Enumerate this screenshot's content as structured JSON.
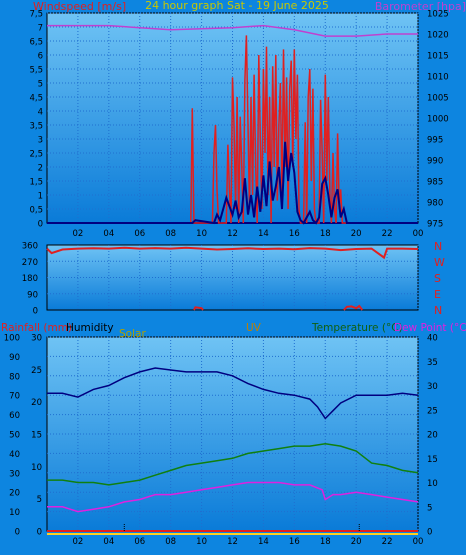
{
  "title": "24 hour graph Sat - 19 June 2025",
  "colors": {
    "background": "#0d85e0",
    "plot_top": "#6fc3f4",
    "plot_bottom": "#0a7bd8",
    "grid": "#1f6fd0",
    "wind": "#e02020",
    "gust": "#000080",
    "barometer": "#c040d0",
    "direction": "#e02020",
    "humidity": "#000080",
    "temperature": "#108010",
    "dewpoint": "#e020e0",
    "rain": "#e02020",
    "solar": "#ffd020",
    "uv": "#000000",
    "axis_text": "#000000",
    "title_text": "#c8c800",
    "rain_label": "#e02020",
    "humidity_label": "#000000",
    "solar_label": "#b0a000",
    "uv_label": "#c08000",
    "temp_label": "#106010",
    "dew_label": "#e020e0",
    "baro_label": "#c040d0"
  },
  "chart_data": [
    {
      "type": "line",
      "name": "wind",
      "xlabel_ticks": [
        "02",
        "04",
        "06",
        "08",
        "10",
        "12",
        "14",
        "16",
        "18",
        "20",
        "22",
        "00"
      ],
      "left_label": "Windspeed [m/s]",
      "left_ticks": [
        "0",
        "0,5",
        "1",
        "1,5",
        "2",
        "2,5",
        "3",
        "3,5",
        "4",
        "4,5",
        "5",
        "5,5",
        "6",
        "6,5",
        "7",
        "7,5"
      ],
      "left_range": [
        0,
        7.5
      ],
      "right_label": "Barometer [hpa]",
      "right_ticks": [
        "975",
        "980",
        "985",
        "990",
        "995",
        "1000",
        "1005",
        "1010",
        "1015",
        "1020",
        "1025"
      ],
      "right_range": [
        975,
        1025
      ],
      "barometer": {
        "x": [
          0,
          4,
          6,
          8,
          12,
          14,
          16,
          18,
          20,
          22,
          24
        ],
        "y": [
          1022,
          1022,
          1021.5,
          1021,
          1021.5,
          1022,
          1021,
          1019.5,
          1019.5,
          1020,
          1020
        ]
      },
      "wind_speed": {
        "x": [
          0,
          9.3,
          9.4,
          9.5,
          10.7,
          10.8,
          10.9,
          11,
          11.1,
          11.6,
          11.7,
          11.8,
          11.9,
          12,
          12.1,
          12.2,
          12.3,
          12.4,
          12.5,
          12.6,
          12.7,
          12.8,
          12.9,
          13,
          13.1,
          13.2,
          13.3,
          13.4,
          13.5,
          13.6,
          13.7,
          13.8,
          13.9,
          14,
          14.1,
          14.2,
          14.3,
          14.4,
          14.5,
          14.6,
          14.7,
          14.8,
          14.9,
          15,
          15.1,
          15.2,
          15.3,
          15.4,
          15.5,
          15.6,
          15.7,
          15.8,
          15.9,
          16,
          16.1,
          16.2,
          16.3,
          16.4,
          16.5,
          16.6,
          16.7,
          16.8,
          16.9,
          17,
          17.1,
          17.2,
          17.3,
          17.4,
          17.5,
          17.6,
          17.7,
          17.8,
          17.9,
          18,
          18.1,
          18.2,
          18.3,
          18.4,
          18.5,
          18.6,
          18.7,
          18.8,
          18.9,
          19,
          19.1,
          19.2,
          19.3,
          24
        ],
        "y": [
          0,
          0,
          4.1,
          0,
          0,
          2.5,
          3.5,
          1.2,
          0,
          0,
          2.8,
          1.2,
          0,
          5.2,
          3.5,
          0.5,
          4.5,
          0,
          3.8,
          2,
          0,
          5.1,
          6.7,
          3.5,
          0.5,
          4.5,
          1,
          5.3,
          2,
          0,
          6,
          3,
          0.5,
          5.5,
          2.5,
          6.3,
          1,
          4.5,
          0,
          5.6,
          2,
          6,
          0.8,
          3.5,
          5,
          1,
          6.2,
          2,
          5.2,
          0.5,
          4.8,
          5.8,
          2,
          6.2,
          3,
          5.3,
          0.5,
          0,
          0,
          0,
          3.6,
          0,
          4.5,
          5.5,
          1.5,
          4.8,
          0.5,
          0,
          0,
          0,
          4.4,
          2.5,
          0,
          5.3,
          1.5,
          4.5,
          1,
          0,
          2.5,
          0.5,
          0,
          3.2,
          0.5,
          1.2,
          0,
          0,
          0,
          0
        ]
      },
      "wind_gust": {
        "x": [
          0,
          9.4,
          9.6,
          10.8,
          11,
          11.2,
          11.4,
          11.6,
          11.8,
          12,
          12.2,
          12.4,
          12.6,
          12.8,
          13,
          13.2,
          13.4,
          13.6,
          13.8,
          14,
          14.2,
          14.4,
          14.6,
          14.8,
          15,
          15.2,
          15.4,
          15.6,
          15.8,
          16,
          16.2,
          16.4,
          16.6,
          16.8,
          17,
          17.2,
          17.4,
          17.6,
          17.8,
          18,
          18.2,
          18.4,
          18.6,
          18.8,
          19,
          19.2,
          19.4,
          24
        ],
        "y": [
          0,
          0,
          0.1,
          0,
          0.3,
          0.1,
          0.5,
          0.9,
          0.6,
          0.3,
          0.8,
          0.2,
          0.4,
          1.6,
          0.3,
          1,
          0.2,
          1.3,
          0.4,
          1.7,
          0.6,
          2.2,
          0.8,
          1.3,
          2,
          0.5,
          2.9,
          1.5,
          2.5,
          1.8,
          0.4,
          0.1,
          0,
          0.2,
          0.4,
          0.1,
          0,
          0.2,
          1.4,
          1.6,
          1,
          0.2,
          0.9,
          1.2,
          0.2,
          0.5,
          0,
          0
        ]
      }
    },
    {
      "type": "line",
      "name": "direction",
      "left_ticks": [
        "0",
        "90",
        "180",
        "270",
        "360"
      ],
      "left_range": [
        0,
        360
      ],
      "compass": [
        "N",
        "W",
        "S",
        "E",
        "N"
      ],
      "direction": {
        "x": [
          0,
          0.3,
          1,
          2,
          3,
          4,
          5,
          6,
          7,
          8,
          9,
          10,
          11,
          12,
          13,
          14,
          15,
          16,
          17,
          18,
          19,
          20,
          21,
          21.8,
          22,
          23,
          24
        ],
        "y": [
          340,
          315,
          335,
          340,
          342,
          340,
          345,
          340,
          343,
          340,
          345,
          340,
          335,
          338,
          342,
          338,
          340,
          337,
          343,
          340,
          332,
          338,
          340,
          290,
          340,
          340,
          338
        ]
      },
      "low_marks": [
        {
          "x": [
            9.5,
            9.6,
            10,
            10.1
          ],
          "y": [
            0,
            15,
            10,
            0
          ]
        },
        {
          "x": [
            19.2,
            19.4,
            19.7,
            20,
            20.2,
            20.4
          ],
          "y": [
            0,
            18,
            20,
            10,
            22,
            0
          ]
        }
      ]
    },
    {
      "type": "line",
      "name": "climate",
      "legend": [
        "Rainfall (mm)",
        "Humidity",
        "Solar",
        "UV",
        "Temperature (°C)",
        "Dew Point (°C)"
      ],
      "humidity_ticks": [
        "0",
        "10",
        "20",
        "30",
        "40",
        "50",
        "60",
        "70",
        "80",
        "90",
        "100"
      ],
      "humidity_range": [
        0,
        100
      ],
      "rain_ticks": [
        "0",
        "5",
        "10",
        "15",
        "20",
        "25",
        "30"
      ],
      "rain_range": [
        0,
        30
      ],
      "temp_ticks": [
        "0",
        "5",
        "10",
        "15",
        "20",
        "25",
        "30",
        "35",
        "40"
      ],
      "temp_range": [
        0,
        40
      ],
      "humidity": {
        "x": [
          0,
          1,
          2,
          3,
          4,
          5,
          6,
          7,
          8,
          9,
          10,
          11,
          12,
          13,
          14,
          15,
          16,
          17,
          17.5,
          18,
          18.5,
          19,
          20,
          21,
          22,
          23,
          24
        ],
        "y": [
          71,
          71,
          69,
          73,
          75,
          79,
          82,
          84,
          83,
          82,
          82,
          82,
          80,
          76,
          73,
          71,
          70,
          68,
          64,
          58,
          62,
          66,
          70,
          70,
          70,
          71,
          70
        ]
      },
      "temperature": {
        "x": [
          0,
          1,
          2,
          3,
          4,
          5,
          6,
          7,
          8,
          9,
          10,
          11,
          12,
          13,
          14,
          15,
          16,
          17,
          18,
          19,
          20,
          21,
          22,
          23,
          24
        ],
        "y": [
          10.5,
          10.5,
          10,
          10,
          9.5,
          10,
          10.5,
          11.5,
          12.5,
          13.5,
          14,
          14.5,
          15,
          16,
          16.5,
          17,
          17.5,
          17.5,
          18,
          17.5,
          16.5,
          14,
          13.5,
          12.5,
          12
        ]
      },
      "dewpoint": {
        "x": [
          0,
          1,
          2,
          3,
          4,
          5,
          6,
          7,
          8,
          9,
          10,
          11,
          12,
          13,
          14,
          15,
          16,
          17,
          17.8,
          18,
          18.5,
          19,
          20,
          21,
          22,
          23,
          24
        ],
        "y": [
          5,
          5,
          4,
          4.5,
          5,
          6,
          6.5,
          7.5,
          7.5,
          8,
          8.5,
          9,
          9.5,
          10,
          10,
          10,
          9.5,
          9.5,
          8.5,
          6.5,
          7.5,
          7.5,
          8,
          7.5,
          7,
          6.5,
          6
        ]
      },
      "solar_level": 0,
      "uv_marks": [
        {
          "x": 5,
          "y": 1.5
        },
        {
          "x": 20.2,
          "y": 1.5
        }
      ]
    }
  ]
}
